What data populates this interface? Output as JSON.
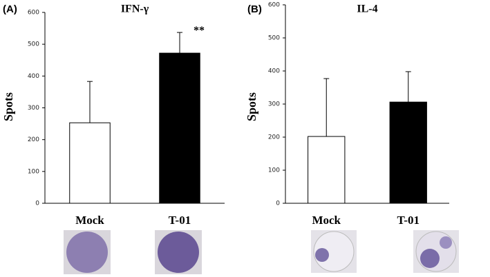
{
  "chart_data": [
    {
      "type": "bar",
      "panel_label": "(A)",
      "title": "IFN-γ",
      "ylabel": "Spots",
      "categories": [
        "Mock",
        "T-01"
      ],
      "values": [
        253,
        472
      ],
      "errors": [
        130,
        65
      ],
      "colors": [
        "#ffffff",
        "#000000"
      ],
      "annotation": "**",
      "ylim": [
        0,
        600
      ],
      "yticks": [
        0,
        100,
        200,
        300,
        400,
        500,
        600
      ]
    },
    {
      "type": "bar",
      "panel_label": "(B)",
      "title": "IL-4",
      "ylabel": "Spots",
      "categories": [
        "Mock",
        "T-01"
      ],
      "values": [
        202,
        306
      ],
      "errors": [
        175,
        92
      ],
      "colors": [
        "#ffffff",
        "#000000"
      ],
      "ylim": [
        0,
        600
      ],
      "yticks": [
        0,
        100,
        200,
        300,
        400,
        500,
        600
      ]
    }
  ]
}
